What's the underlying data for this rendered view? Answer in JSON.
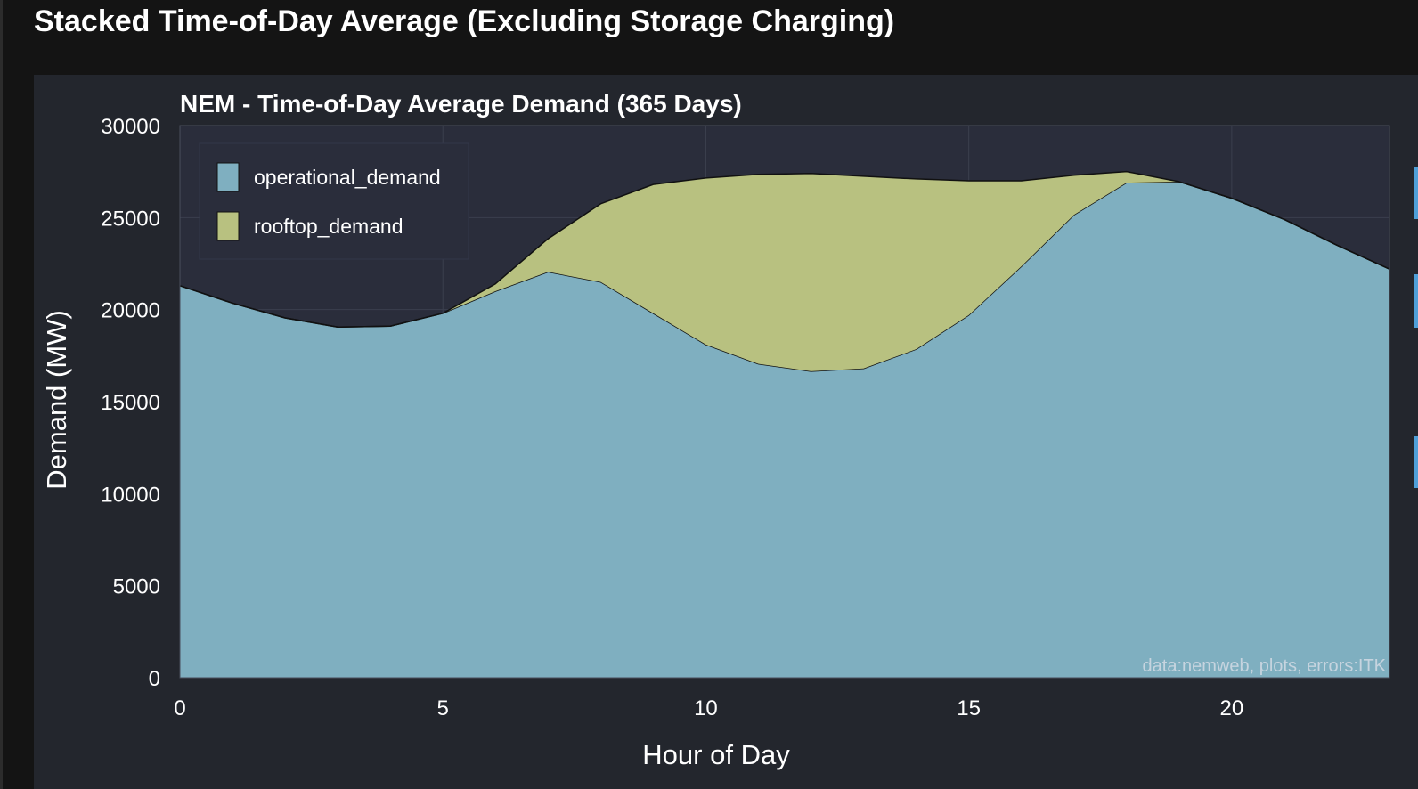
{
  "page": {
    "heading": "Stacked Time-of-Day Average (Excluding Storage Charging)"
  },
  "colors": {
    "page_background": "#141414",
    "panel_background": "#23262d",
    "plot_background": "#2a2d3b",
    "operational_fill": "#7fafc0",
    "rooftop_fill": "#b8c180",
    "outline": "#111111",
    "text": "#ffffff",
    "watermark": "#d8dde6"
  },
  "chart_data": {
    "type": "area",
    "stacked": true,
    "title": "NEM - Time-of-Day Average Demand (365 Days)",
    "xlabel": "Hour of Day",
    "ylabel": "Demand (MW)",
    "xlim": [
      0,
      23
    ],
    "ylim": [
      0,
      30000
    ],
    "x_ticks": [
      0,
      5,
      10,
      15,
      20
    ],
    "y_ticks": [
      0,
      5000,
      10000,
      15000,
      20000,
      25000,
      30000
    ],
    "grid": true,
    "legend_position": "top-left",
    "watermark": "data:nemweb, plots, errors:ITK",
    "x": [
      0,
      1,
      2,
      3,
      4,
      5,
      6,
      7,
      8,
      9,
      10,
      11,
      12,
      13,
      14,
      15,
      16,
      17,
      18,
      19,
      20,
      21,
      22,
      23
    ],
    "series": [
      {
        "name": "operational_demand",
        "color": "#7fafc0",
        "values": [
          21300,
          20350,
          19550,
          19050,
          19100,
          19800,
          21000,
          22050,
          21500,
          19800,
          18100,
          17050,
          16650,
          16800,
          17850,
          19700,
          22350,
          25150,
          26900,
          26950,
          26050,
          24900,
          23500,
          22200
        ]
      },
      {
        "name": "rooftop_demand",
        "color": "#b8c180",
        "values": [
          0,
          0,
          0,
          0,
          0,
          0,
          400,
          1800,
          4250,
          7000,
          9050,
          10300,
          10750,
          10450,
          9250,
          7300,
          4650,
          2150,
          600,
          0,
          0,
          0,
          0,
          0
        ]
      }
    ]
  }
}
